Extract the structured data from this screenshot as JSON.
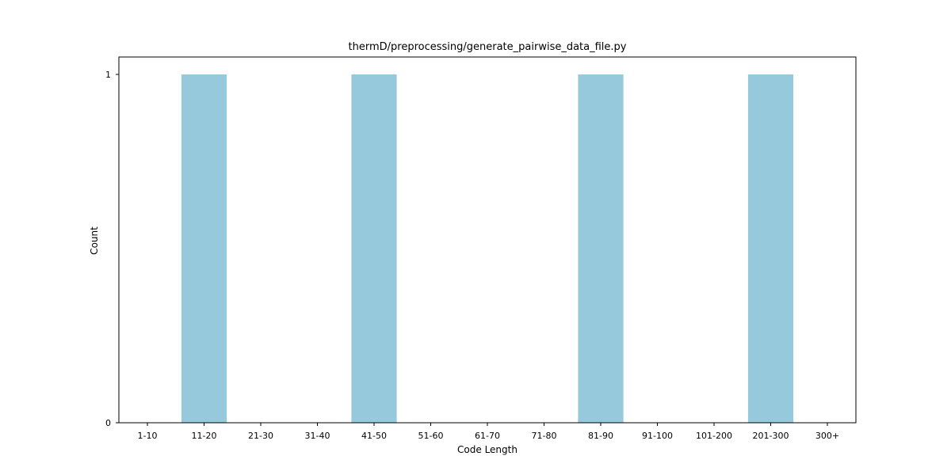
{
  "chart_data": {
    "type": "bar",
    "title": "thermD/preprocessing/generate_pairwise_data_file.py",
    "xlabel": "Code Length",
    "ylabel": "Count",
    "categories": [
      "1-10",
      "11-20",
      "21-30",
      "31-40",
      "41-50",
      "51-60",
      "61-70",
      "71-80",
      "81-90",
      "91-100",
      "101-200",
      "201-300",
      "300+"
    ],
    "values": [
      0,
      1,
      0,
      0,
      1,
      0,
      0,
      0,
      1,
      0,
      0,
      1,
      0
    ],
    "ylim": [
      0,
      1
    ],
    "yticks": [
      "0",
      "1"
    ],
    "bar_color": "#96c9dc",
    "grid": false,
    "legend": "none"
  }
}
